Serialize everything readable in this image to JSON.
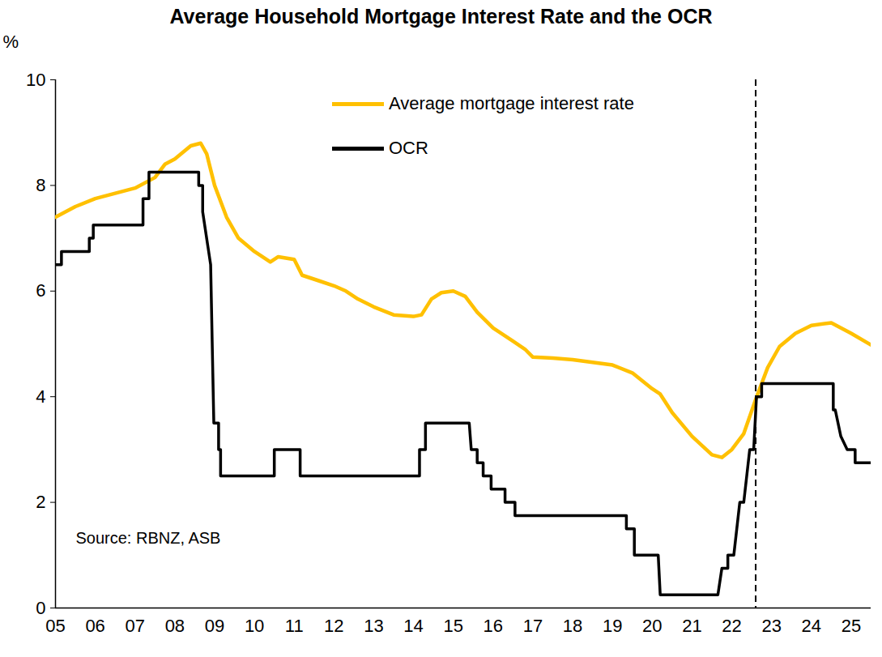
{
  "chart_data": {
    "type": "line",
    "title": "Average Household Mortgage Interest Rate and the OCR",
    "y_label": "%",
    "source": "Source: RBNZ, ASB",
    "legend": "top",
    "grid": false,
    "xlim": [
      2005,
      2025.5
    ],
    "ylim": [
      0,
      10
    ],
    "yticks": [
      0,
      2,
      4,
      6,
      8,
      10
    ],
    "xticks": [
      {
        "value": 2005,
        "label": "05"
      },
      {
        "value": 2006,
        "label": "06"
      },
      {
        "value": 2007,
        "label": "07"
      },
      {
        "value": 2008,
        "label": "08"
      },
      {
        "value": 2009,
        "label": "09"
      },
      {
        "value": 2010,
        "label": "10"
      },
      {
        "value": 2011,
        "label": "11"
      },
      {
        "value": 2012,
        "label": "12"
      },
      {
        "value": 2013,
        "label": "13"
      },
      {
        "value": 2014,
        "label": "14"
      },
      {
        "value": 2015,
        "label": "15"
      },
      {
        "value": 2016,
        "label": "16"
      },
      {
        "value": 2017,
        "label": "17"
      },
      {
        "value": 2018,
        "label": "18"
      },
      {
        "value": 2019,
        "label": "19"
      },
      {
        "value": 2020,
        "label": "20"
      },
      {
        "value": 2021,
        "label": "21"
      },
      {
        "value": 2022,
        "label": "22"
      },
      {
        "value": 2023,
        "label": "23"
      },
      {
        "value": 2024,
        "label": "24"
      },
      {
        "value": 2025,
        "label": "25"
      }
    ],
    "reference_lines": [
      {
        "x": 2022.6,
        "color": "#000000",
        "line_style": "dashed"
      }
    ],
    "series": [
      {
        "name": "Average mortgage interest rate",
        "color": "#FFC000",
        "line_style": "solid",
        "marker": "none",
        "x": [
          2005.0,
          2005.5,
          2006.0,
          2006.5,
          2007.0,
          2007.5,
          2007.75,
          2008.0,
          2008.4,
          2008.65,
          2008.8,
          2009.0,
          2009.3,
          2009.6,
          2010.0,
          2010.4,
          2010.6,
          2011.0,
          2011.2,
          2011.6,
          2012.0,
          2012.3,
          2012.6,
          2013.0,
          2013.5,
          2014.0,
          2014.2,
          2014.45,
          2014.7,
          2015.0,
          2015.3,
          2015.6,
          2016.0,
          2016.5,
          2016.8,
          2017.0,
          2017.5,
          2018.0,
          2018.5,
          2019.0,
          2019.5,
          2020.0,
          2020.2,
          2020.5,
          2021.0,
          2021.5,
          2021.75,
          2022.0,
          2022.3,
          2022.6,
          2022.9,
          2023.2,
          2023.6,
          2024.0,
          2024.5,
          2024.75,
          2025.0,
          2025.5
        ],
        "values": [
          7.4,
          7.6,
          7.75,
          7.85,
          7.95,
          8.15,
          8.4,
          8.5,
          8.75,
          8.8,
          8.6,
          8.0,
          7.4,
          7.0,
          6.75,
          6.55,
          6.65,
          6.6,
          6.3,
          6.2,
          6.1,
          6.0,
          5.85,
          5.7,
          5.55,
          5.52,
          5.55,
          5.85,
          5.97,
          6.0,
          5.9,
          5.6,
          5.3,
          5.05,
          4.9,
          4.75,
          4.73,
          4.7,
          4.65,
          4.6,
          4.45,
          4.15,
          4.05,
          3.7,
          3.25,
          2.9,
          2.85,
          3.0,
          3.3,
          3.95,
          4.55,
          4.95,
          5.2,
          5.35,
          5.4,
          5.3,
          5.2,
          4.98
        ]
      },
      {
        "name": "OCR",
        "color": "#000000",
        "line_style": "solid",
        "marker": "none",
        "x": [
          2005.0,
          2005.15,
          2005.15,
          2005.85,
          2005.85,
          2005.95,
          2005.95,
          2007.2,
          2007.2,
          2007.35,
          2007.35,
          2008.6,
          2008.6,
          2008.7,
          2008.7,
          2008.9,
          2008.98,
          2009.1,
          2009.1,
          2009.15,
          2009.15,
          2010.5,
          2010.5,
          2011.15,
          2011.15,
          2014.15,
          2014.15,
          2014.3,
          2014.3,
          2015.4,
          2015.45,
          2015.6,
          2015.6,
          2015.75,
          2015.75,
          2015.95,
          2015.95,
          2016.3,
          2016.3,
          2016.55,
          2016.55,
          2019.35,
          2019.35,
          2019.55,
          2019.55,
          2020.15,
          2020.2,
          2021.65,
          2021.75,
          2021.9,
          2021.9,
          2022.05,
          2022.2,
          2022.3,
          2022.45,
          2022.55,
          2022.62,
          2022.75,
          2022.75,
          2024.55,
          2024.55,
          2024.6,
          2024.74,
          2024.9,
          2025.1,
          2025.1,
          2025.5
        ],
        "values": [
          6.5,
          6.5,
          6.75,
          6.75,
          7.0,
          7.0,
          7.25,
          7.25,
          7.75,
          7.75,
          8.25,
          8.25,
          8.0,
          8.0,
          7.5,
          6.5,
          3.5,
          3.5,
          3.0,
          3.0,
          2.5,
          2.5,
          3.0,
          3.0,
          2.5,
          2.5,
          3.0,
          3.0,
          3.5,
          3.5,
          3.0,
          3.0,
          2.75,
          2.75,
          2.5,
          2.5,
          2.25,
          2.25,
          2.0,
          2.0,
          1.75,
          1.75,
          1.5,
          1.5,
          1.0,
          1.0,
          0.25,
          0.25,
          0.75,
          0.75,
          1.0,
          1.0,
          2.0,
          2.0,
          3.0,
          3.0,
          4.0,
          4.0,
          4.25,
          4.25,
          3.75,
          3.75,
          3.25,
          3.0,
          3.0,
          2.75,
          2.75
        ]
      }
    ]
  }
}
